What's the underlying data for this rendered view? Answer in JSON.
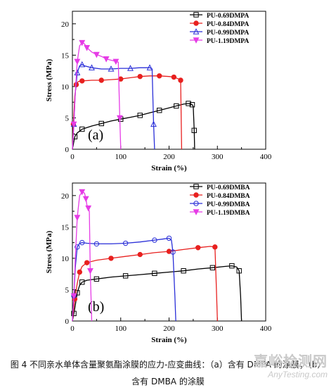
{
  "caption": {
    "line1": "图 4  不同亲水单体含量聚氨酯涂膜的应力-应变曲线：（a）含有 DMPA 的涂膜；（b）",
    "line2": "含有 DMBA 的涂膜"
  },
  "watermark": {
    "cn": "嘉峪检测网",
    "en": "AnyTesting.com"
  },
  "chart_data": [
    {
      "type": "line",
      "panel_label": "(a)",
      "xlabel": "Strain (%)",
      "ylabel": "Stress (MPa)",
      "xlim": [
        0,
        400
      ],
      "ylim": [
        0,
        22
      ],
      "xticks": [
        0,
        100,
        200,
        300,
        400
      ],
      "yticks": [
        0,
        5,
        10,
        15,
        20
      ],
      "grid": false,
      "legend": "top-right",
      "series": [
        {
          "name": "PU-0.69DMPA",
          "color": "#000000",
          "marker": "square",
          "x": [
            0,
            5,
            10,
            20,
            40,
            60,
            80,
            100,
            120,
            140,
            160,
            180,
            200,
            215,
            230,
            240,
            245,
            248,
            250,
            252,
            253
          ],
          "y": [
            0,
            2.0,
            2.6,
            3.2,
            3.7,
            4.1,
            4.5,
            4.8,
            5.1,
            5.4,
            5.8,
            6.2,
            6.6,
            6.9,
            7.2,
            7.3,
            7.2,
            7.1,
            6.8,
            3.0,
            0
          ]
        },
        {
          "name": "PU-0.84DMPA",
          "color": "#e8201f",
          "marker": "circle",
          "x": [
            0,
            2,
            5,
            8,
            12,
            20,
            40,
            60,
            80,
            100,
            120,
            140,
            160,
            180,
            200,
            210,
            220,
            224,
            226
          ],
          "y": [
            0,
            4.0,
            8.5,
            10.3,
            10.8,
            10.9,
            11.0,
            11.0,
            11.1,
            11.2,
            11.4,
            11.6,
            11.7,
            11.7,
            11.6,
            11.5,
            11.2,
            11.0,
            0
          ]
        },
        {
          "name": "PU-0.99DMPA",
          "color": "#2a2fd8",
          "marker": "triangle-up",
          "x": [
            0,
            3,
            6,
            10,
            15,
            20,
            25,
            40,
            60,
            80,
            100,
            120,
            140,
            160,
            165,
            168,
            170
          ],
          "y": [
            0,
            4.0,
            9.0,
            12.2,
            13.3,
            13.5,
            13.3,
            13.0,
            12.8,
            12.8,
            12.9,
            12.9,
            13.0,
            13.0,
            12.8,
            4.0,
            0
          ]
        },
        {
          "name": "PU-1.19DMPA",
          "color": "#e63ce6",
          "marker": "triangle-down",
          "x": [
            0,
            3,
            6,
            10,
            15,
            20,
            25,
            30,
            40,
            50,
            60,
            70,
            80,
            90,
            95,
            98,
            100
          ],
          "y": [
            0,
            4.0,
            9.0,
            14.0,
            16.5,
            17.0,
            16.8,
            16.2,
            15.5,
            15.1,
            14.8,
            14.4,
            14.2,
            14.0,
            13.9,
            5.0,
            0
          ]
        }
      ]
    },
    {
      "type": "line",
      "panel_label": "(b)",
      "xlabel": "Strain (%)",
      "ylabel": "Stress (MPa)",
      "xlim": [
        0,
        400
      ],
      "ylim": [
        0,
        22
      ],
      "xticks": [
        0,
        100,
        200,
        300,
        400
      ],
      "yticks": [
        0,
        5,
        10,
        15,
        20
      ],
      "grid": false,
      "legend": "top-right",
      "series": [
        {
          "name": "PU-0.69DMBA",
          "color": "#000000",
          "marker": "square",
          "x": [
            0,
            3,
            6,
            10,
            15,
            20,
            30,
            50,
            80,
            110,
            140,
            170,
            200,
            230,
            260,
            290,
            315,
            330,
            340,
            345,
            348,
            350
          ],
          "y": [
            0,
            1.2,
            2.5,
            4.5,
            5.7,
            6.2,
            6.5,
            6.7,
            7.0,
            7.2,
            7.4,
            7.6,
            7.8,
            8.0,
            8.3,
            8.5,
            8.7,
            8.8,
            8.6,
            8.0,
            4.0,
            0
          ]
        },
        {
          "name": "PU-0.84DMBA",
          "color": "#e8201f",
          "marker": "circle",
          "x": [
            0,
            5,
            10,
            15,
            20,
            30,
            50,
            80,
            110,
            140,
            170,
            200,
            230,
            260,
            285,
            295,
            298,
            300
          ],
          "y": [
            0,
            3.5,
            6.0,
            7.8,
            8.7,
            9.3,
            9.7,
            10.0,
            10.3,
            10.6,
            10.9,
            11.1,
            11.4,
            11.7,
            11.9,
            11.8,
            5.0,
            0
          ]
        },
        {
          "name": "PU-0.99DMBA",
          "color": "#2a2fd8",
          "marker": "circle-open",
          "x": [
            0,
            3,
            6,
            10,
            15,
            20,
            30,
            50,
            80,
            110,
            140,
            170,
            190,
            200,
            205,
            208,
            212,
            214
          ],
          "y": [
            0,
            4.0,
            8.5,
            11.8,
            12.4,
            12.5,
            12.4,
            12.3,
            12.3,
            12.4,
            12.6,
            12.9,
            13.1,
            13.2,
            12.9,
            11.0,
            4.0,
            0
          ]
        },
        {
          "name": "PU-1.19DMBA",
          "color": "#e63ce6",
          "marker": "triangle-down",
          "x": [
            0,
            3,
            6,
            10,
            15,
            20,
            25,
            28,
            30,
            33,
            35,
            37,
            40
          ],
          "y": [
            0,
            4.0,
            10.0,
            16.5,
            20.0,
            20.6,
            20.4,
            19.5,
            18.5,
            18.0,
            17.5,
            8.0,
            0
          ]
        }
      ]
    }
  ]
}
